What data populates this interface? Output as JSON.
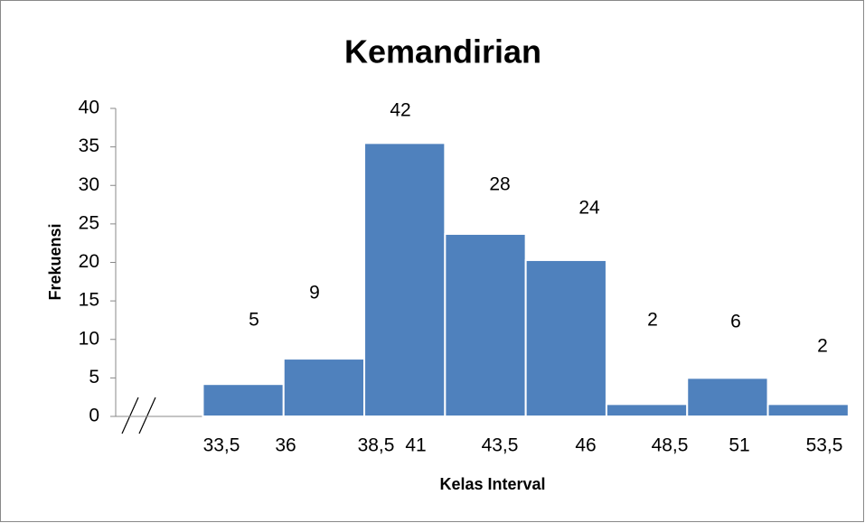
{
  "chart_data": {
    "type": "histogram",
    "title": "Kemandirian",
    "xlabel": "Kelas Interval",
    "ylabel": "Frekuensi",
    "bins": [
      {
        "value": 33.5,
        "label": "33,5"
      },
      36,
      {
        "value": 38.5,
        "label": "38,5"
      },
      41,
      {
        "value": 43.5,
        "label": "43,5"
      },
      46,
      {
        "value": 48.5,
        "label": "48,5"
      },
      51,
      {
        "value": 53.5,
        "label": "53,5"
      }
    ],
    "values": [
      4.2,
      7.5,
      35.5,
      23.7,
      20.3,
      1.6,
      5.0,
      1.6
    ],
    "annotations": [
      "5",
      "9",
      "42",
      "28",
      "24",
      "2",
      "6",
      "2"
    ],
    "color": "#4f81bd",
    "xlim": [
      30.8,
      53.5
    ],
    "ylim": [
      0,
      40
    ],
    "yticks": [
      0,
      5,
      10,
      15,
      20,
      25,
      30,
      35,
      40
    ]
  }
}
